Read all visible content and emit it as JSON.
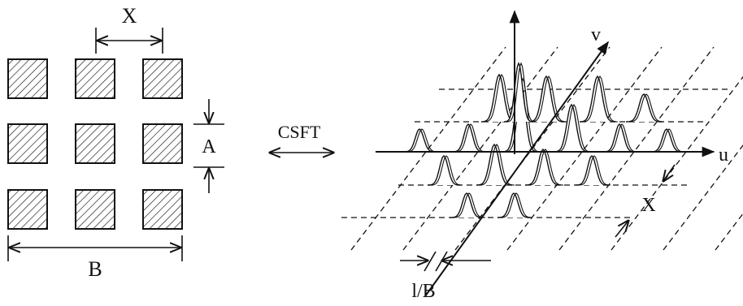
{
  "left_figure": {
    "label_x": "X",
    "label_a": "A",
    "label_b": "B",
    "grid": {
      "rows": 3,
      "cols": 3
    }
  },
  "transform": {
    "label": "CSFT"
  },
  "right_figure": {
    "axis_u_label": "u",
    "axis_v_label": "v",
    "spacing_label": "X",
    "width_label": "l/B"
  },
  "colors": {
    "ink": "#111111",
    "background": "#ffffff"
  }
}
